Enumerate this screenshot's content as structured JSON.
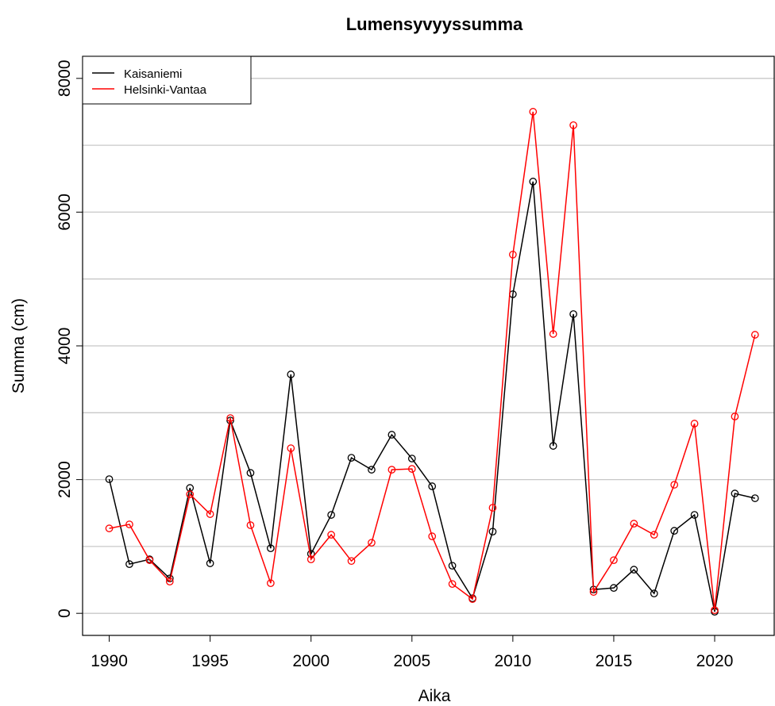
{
  "chart_data": {
    "type": "line",
    "title": "Lumensyvyyssumma",
    "x_label": "Aika",
    "y_label": "Summa (cm)",
    "x": [
      1990,
      1991,
      1992,
      1993,
      1994,
      1995,
      1996,
      1997,
      1998,
      1999,
      2000,
      2001,
      2002,
      2003,
      2004,
      2005,
      2006,
      2007,
      2008,
      2009,
      2010,
      2011,
      2012,
      2013,
      2014,
      2015,
      2016,
      2017,
      2018,
      2019,
      2020,
      2021,
      2022
    ],
    "series": [
      {
        "name": "Kaisaniemi",
        "color": "#000000",
        "values": [
          2006,
          736,
          807,
          522,
          1875,
          748,
          2884,
          2100,
          973,
          3573,
          890,
          1472,
          2326,
          2148,
          2671,
          2315,
          1900,
          712,
          225,
          1222,
          4772,
          6457,
          2504,
          4475,
          356,
          380,
          653,
          297,
          1234,
          1472,
          24,
          1792,
          1721
        ]
      },
      {
        "name": "Helsinki-Vantaa",
        "color": "#ff0000",
        "values": [
          1270,
          1330,
          795,
          475,
          1780,
          1484,
          2920,
          1318,
          451,
          2469,
          807,
          1175,
          783,
          1056,
          2148,
          2160,
          1151,
          439,
          214,
          1579,
          5365,
          7501,
          4178,
          7300,
          320,
          795,
          1341,
          1175,
          1923,
          2837,
          47,
          2944,
          4166
        ]
      }
    ],
    "xlim": [
      1988.68,
      2022.95
    ],
    "xticks": [
      1990,
      1995,
      2000,
      2005,
      2010,
      2015,
      2020
    ],
    "ylim": [
      -330,
      8330
    ],
    "yticks": [
      0,
      2000,
      4000,
      6000,
      8000
    ],
    "ygrid": [
      0,
      1000,
      2000,
      3000,
      4000,
      5000,
      6000,
      7000,
      8000
    ],
    "legend": "top-left"
  }
}
